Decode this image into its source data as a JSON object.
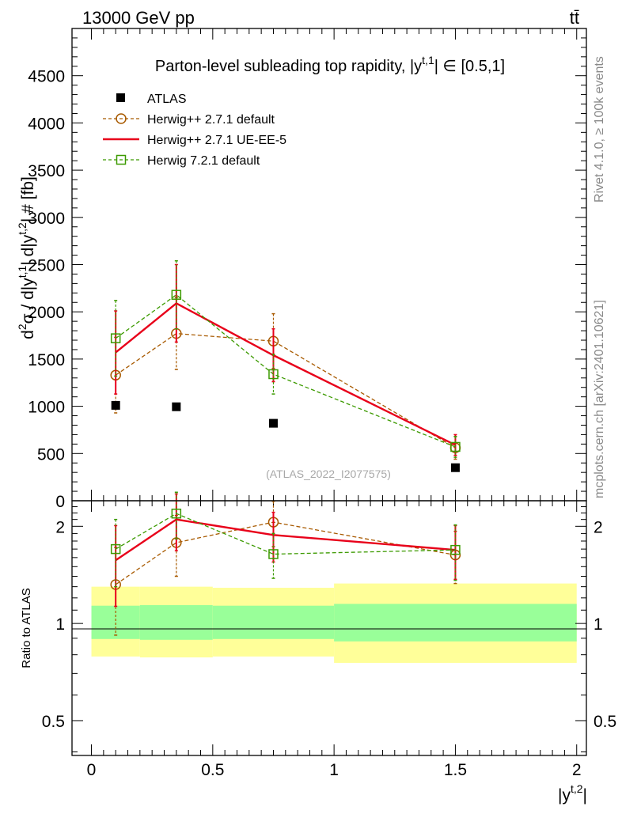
{
  "header": {
    "energy_label": "13000 GeV pp",
    "process_label": "tt̄"
  },
  "side_labels": {
    "rivet": "Rivet 4.1.0, ≥ 100k events",
    "mcplots": "mcplots.cern.ch [arXiv:2401.10621]"
  },
  "chart_data": [
    {
      "type": "line",
      "title": "Parton-level subleading top rapidity, |y^t,1| ∈ [0.5,1]",
      "title_parts": {
        "main": "Parton-level subleading top rapidity, |y",
        "sup": "t,1",
        "tail": "| ∈ [0.5,1]"
      },
      "ylabel": "d²σ / d|y^t,1| d|y^t,2| # [fb]",
      "ylabel_parts": {
        "a": "d",
        "a_sup": "2",
        "b": "σ / d|y",
        "b_sup": "t,1",
        "c": "| d|y",
        "c_sup": "t,2",
        "d": "| # [fb]"
      },
      "xlim": [
        -0.08,
        2.04
      ],
      "ylim": [
        0,
        5000
      ],
      "y_ticks": [
        0,
        500,
        1000,
        1500,
        2000,
        2500,
        3000,
        3500,
        4000,
        4500
      ],
      "y_tick_labels": [
        "0",
        "500",
        "1000",
        "1500",
        "2000",
        "2500",
        "3000",
        "3500",
        "4000",
        "4500"
      ],
      "watermark": "(ATLAS_2022_I2077575)",
      "legend_position": "top-left",
      "series": [
        {
          "name": "ATLAS",
          "style": "data",
          "color": "#000000",
          "x": [
            0.1,
            0.35,
            0.75,
            1.5
          ],
          "values": [
            1010,
            995,
            820,
            350
          ],
          "err": [
            0,
            0,
            0,
            0
          ]
        },
        {
          "name": "Herwig++ 2.7.1 default",
          "style": "circle",
          "color": "#a85a00",
          "x": [
            0.1,
            0.35,
            0.75,
            1.5
          ],
          "values": [
            1330,
            1770,
            1690,
            560
          ],
          "err": [
            400,
            380,
            290,
            120
          ]
        },
        {
          "name": "Herwig++ 2.7.1 UE-EE-5",
          "style": "line",
          "color": "#e8001a",
          "x": [
            0.1,
            0.35,
            0.75,
            1.5
          ],
          "values": [
            1570,
            2090,
            1540,
            590
          ],
          "err": [
            440,
            410,
            280,
            110
          ]
        },
        {
          "name": "Herwig 7.2.1 default",
          "style": "square",
          "color": "#3c9a00",
          "x": [
            0.1,
            0.35,
            0.75,
            1.5
          ],
          "values": [
            1720,
            2180,
            1340,
            570
          ],
          "err": [
            400,
            360,
            210,
            110
          ]
        }
      ]
    },
    {
      "type": "line",
      "title": "Ratio to ATLAS",
      "ylabel": "Ratio to ATLAS",
      "xlabel": "|y^t,2|",
      "xlabel_parts": {
        "a": "|y",
        "sup": "t,2",
        "b": "|"
      },
      "xlim": [
        -0.08,
        2.04
      ],
      "ylim": [
        0.39,
        2.4
      ],
      "y_scale": "log",
      "y_ticks": [
        0.5,
        1,
        2
      ],
      "y_tick_labels": [
        "0.5",
        "1",
        "2"
      ],
      "x_ticks": [
        0,
        0.5,
        1,
        1.5,
        2
      ],
      "x_tick_labels": [
        "0",
        "0.5",
        "1",
        "1.5",
        "2"
      ],
      "bands": [
        {
          "x0": 0.0,
          "x1": 0.2,
          "inner": [
            0.895,
            1.135
          ],
          "outer": [
            0.79,
            1.3
          ]
        },
        {
          "x0": 0.2,
          "x1": 0.5,
          "inner": [
            0.89,
            1.14
          ],
          "outer": [
            0.785,
            1.3
          ]
        },
        {
          "x0": 0.5,
          "x1": 1.0,
          "inner": [
            0.895,
            1.135
          ],
          "outer": [
            0.79,
            1.29
          ]
        },
        {
          "x0": 1.0,
          "x1": 2.0,
          "inner": [
            0.88,
            1.15
          ],
          "outer": [
            0.755,
            1.33
          ]
        }
      ],
      "band_colors": {
        "inner": "#99ff99",
        "outer": "#ffff99"
      },
      "series": [
        {
          "name": "Herwig++ 2.7.1 default",
          "style": "circle",
          "color": "#a85a00",
          "x": [
            0.1,
            0.35,
            0.75,
            1.5
          ],
          "values": [
            1.32,
            1.78,
            2.06,
            1.63
          ],
          "err": [
            0.4,
            0.38,
            0.33,
            0.3
          ]
        },
        {
          "name": "Herwig++ 2.7.1 UE-EE-5",
          "style": "line",
          "color": "#e8001a",
          "x": [
            0.1,
            0.35,
            0.75,
            1.5
          ],
          "values": [
            1.57,
            2.1,
            1.88,
            1.69
          ],
          "err": [
            0.44,
            0.42,
            0.33,
            0.32
          ]
        },
        {
          "name": "Herwig 7.2.1 default",
          "style": "square",
          "color": "#3c9a00",
          "x": [
            0.1,
            0.35,
            0.75,
            1.5
          ],
          "values": [
            1.7,
            2.19,
            1.64,
            1.69
          ],
          "err": [
            0.4,
            0.36,
            0.26,
            0.33
          ]
        }
      ]
    }
  ]
}
